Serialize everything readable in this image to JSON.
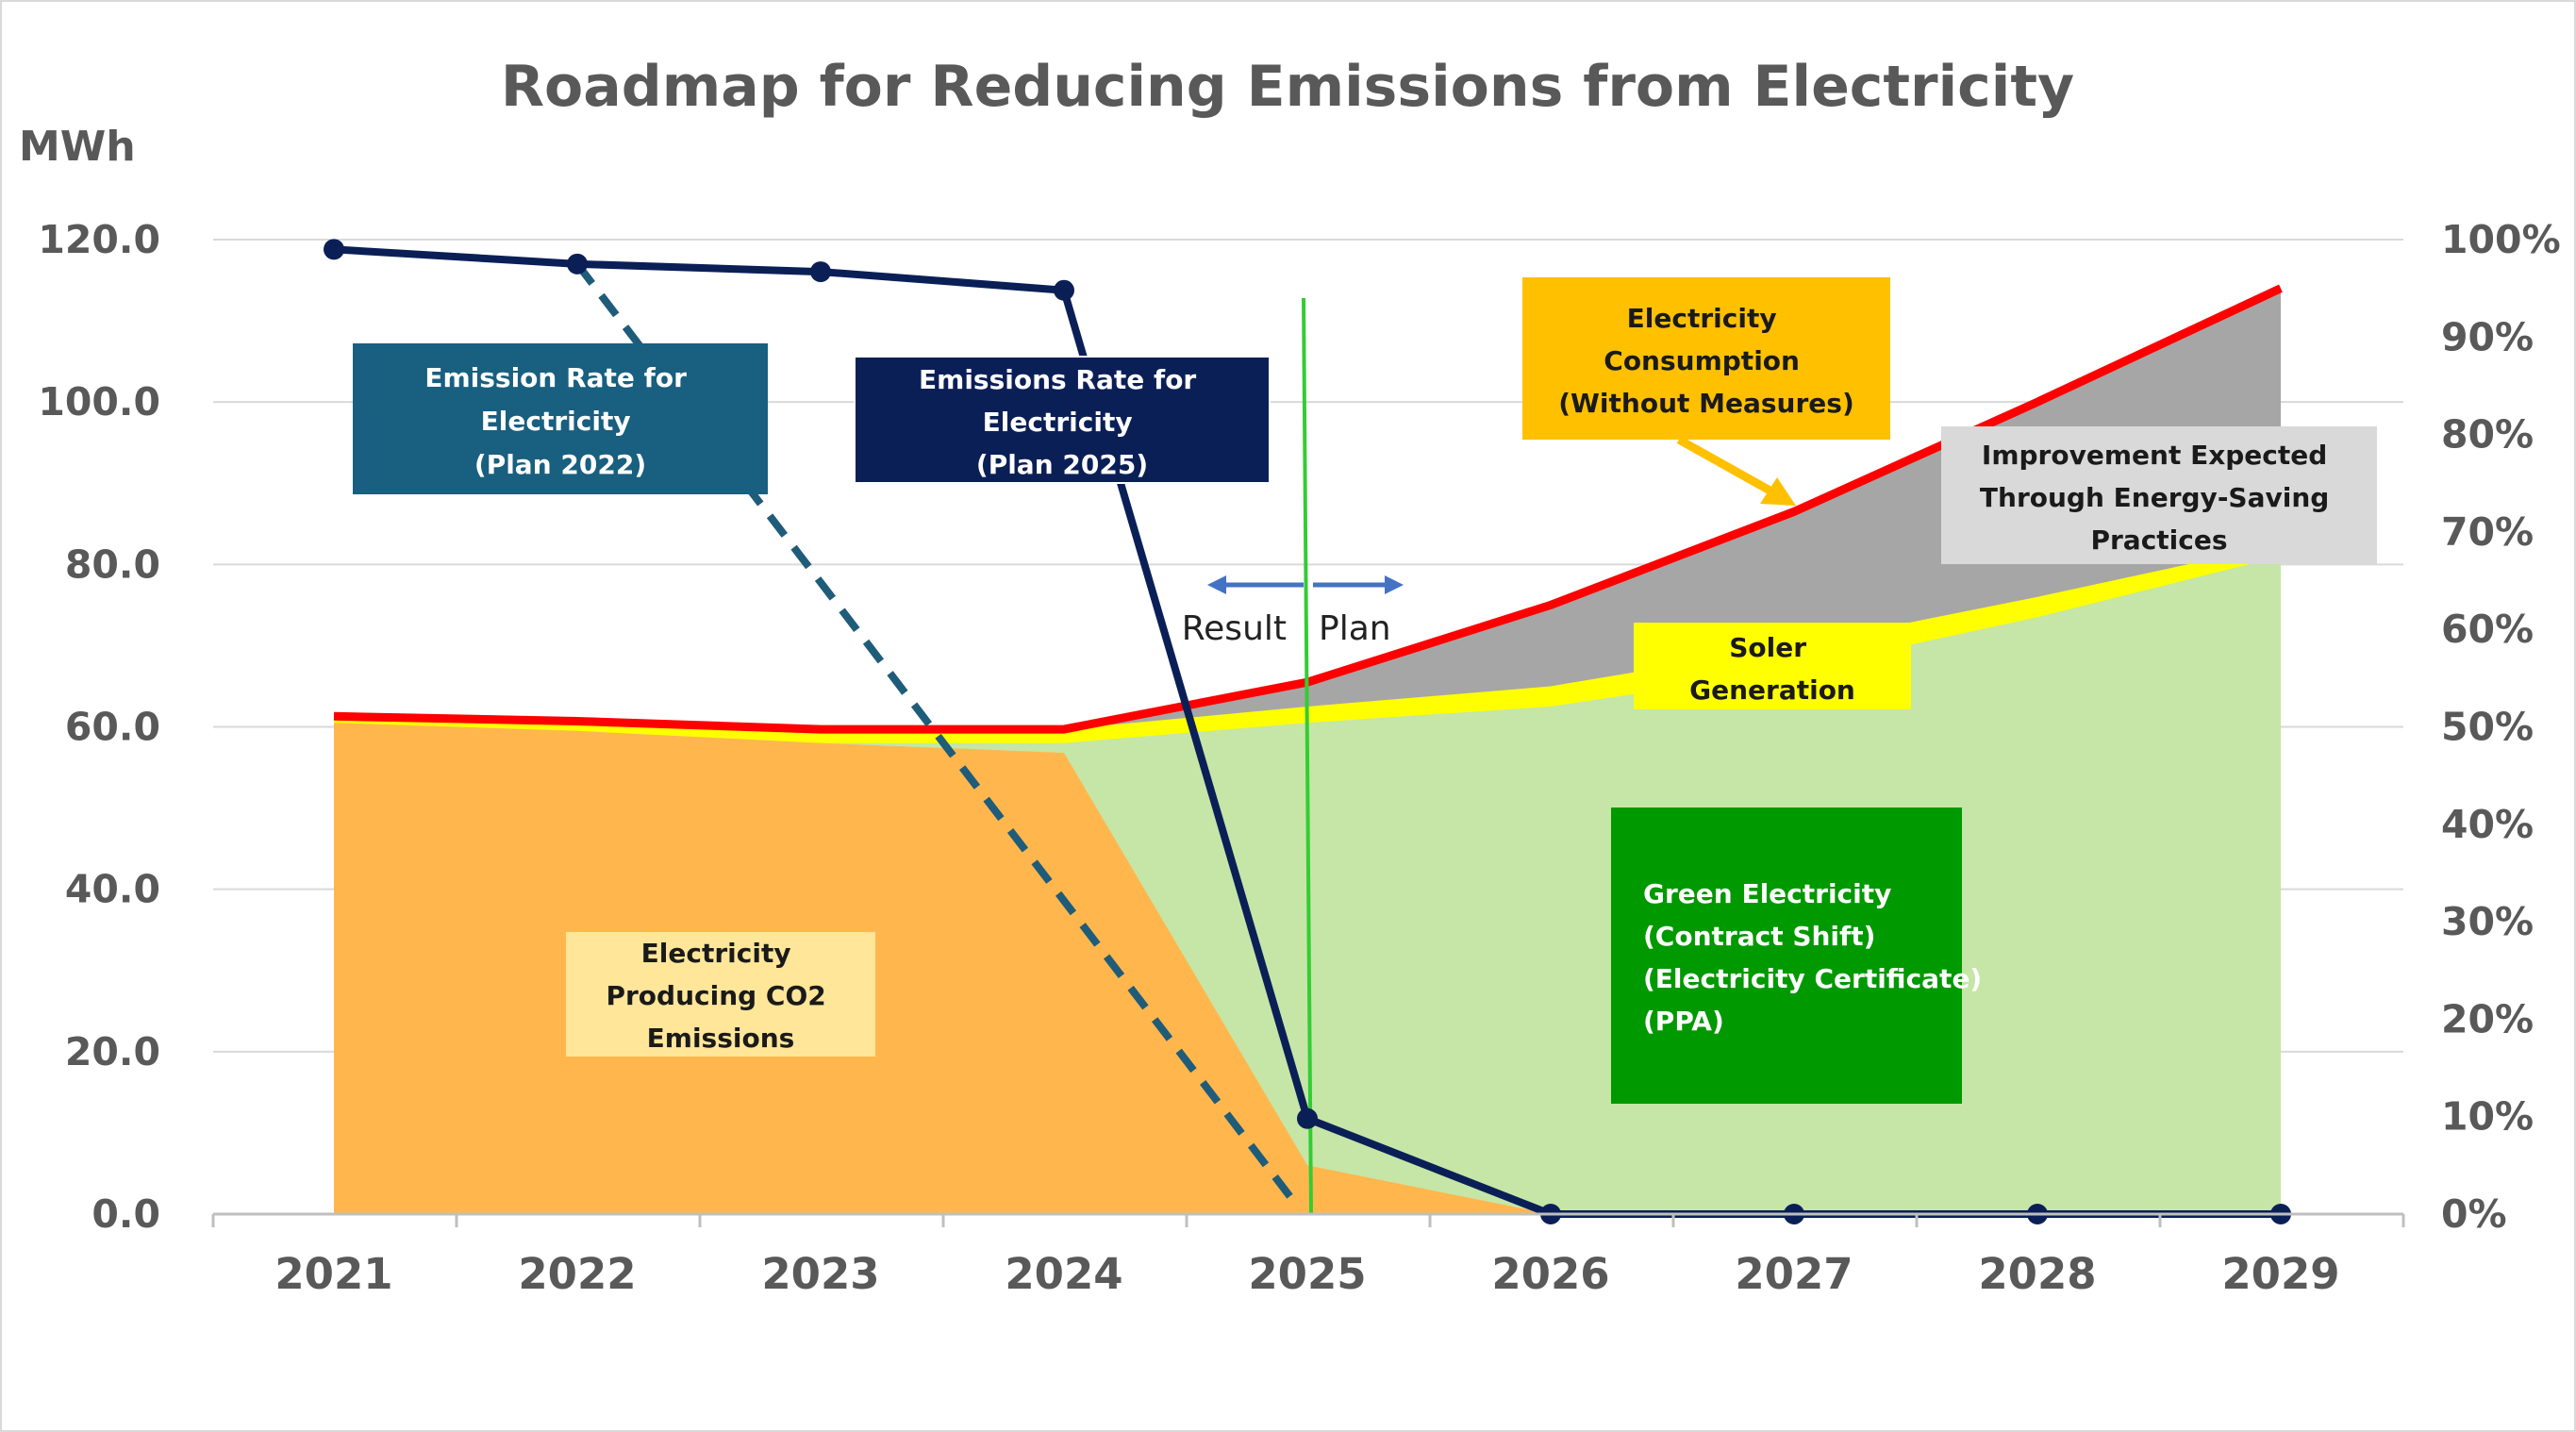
{
  "chart_data": {
    "type": "area",
    "title": "Roadmap for Reducing Emissions from Electricity",
    "ylabel": "MWh",
    "ylim": [
      0,
      120
    ],
    "y_ticks": [
      "0.0",
      "20.0",
      "40.0",
      "60.0",
      "80.0",
      "100.0",
      "120.0"
    ],
    "y2lim": [
      0,
      100
    ],
    "y2_ticks": [
      "0%",
      "10%",
      "20%",
      "30%",
      "40%",
      "50%",
      "60%",
      "70%",
      "80%",
      "90%",
      "100%"
    ],
    "categories": [
      "2021",
      "2022",
      "2023",
      "2024",
      "2025",
      "2026",
      "2027",
      "2028",
      "2029"
    ],
    "series": [
      {
        "kind": "area",
        "color": "#FFB74D",
        "values": [
          60.5,
          59.5,
          58.0,
          56.8,
          6.0,
          0,
          null,
          null,
          null
        ]
      },
      {
        "kind": "area",
        "color": "#C5E6A6",
        "values": [
          60.5,
          59.5,
          58.0,
          58.0,
          60.5,
          62.5,
          67.0,
          73.5,
          81.0
        ]
      },
      {
        "kind": "area",
        "color": "#FFFF00",
        "values": [
          61.3,
          60.7,
          59.7,
          59.7,
          62.5,
          65.0,
          70.0,
          76.0,
          82.5
        ]
      },
      {
        "kind": "area",
        "color": "#A6A6A6",
        "values": [
          61.3,
          60.7,
          59.7,
          59.7,
          65.5,
          75.0,
          86.5,
          100.0,
          114.0
        ]
      },
      {
        "kind": "line",
        "color": "#FF0000",
        "values": [
          61.3,
          60.7,
          59.7,
          59.7,
          65.5,
          75.0,
          86.5,
          100.0,
          114.0
        ]
      },
      {
        "kind": "line",
        "color": "#0B1F57",
        "axis": "right",
        "markers": true,
        "values": [
          99,
          97.5,
          96.7,
          94.8,
          9.8,
          0,
          0,
          0,
          0
        ]
      },
      {
        "kind": "dashed-line",
        "color": "#1F5C7A",
        "axis": "right",
        "points": [
          [
            1,
            97.5
          ],
          [
            4,
            1
          ]
        ]
      }
    ],
    "divider": {
      "x": 4,
      "color": "#33CC33"
    },
    "legend": "none",
    "grid": true
  },
  "annotations": {
    "plan2022": {
      "lines": [
        "Emission Rate for",
        "Electricity",
        "(Plan 2022)"
      ],
      "bg": "#185F80",
      "fg": "#FFFFFF"
    },
    "plan2025": {
      "lines": [
        "Emissions Rate for",
        "Electricity",
        "(Plan 2025)"
      ],
      "bg": "#0B1F57",
      "fg": "#FFFFFF"
    },
    "consumption": {
      "lines": [
        "Electricity",
        "Consumption",
        "(Without Measures)"
      ],
      "bg": "#FFC000",
      "fg": "#1A1A1A"
    },
    "improvement": {
      "lines": [
        "Improvement Expected",
        "Through Energy-Saving",
        "Practices"
      ],
      "bg": "#D9D9D9",
      "fg": "#1A1A1A"
    },
    "solar": {
      "lines": [
        "Soler",
        "Generation"
      ],
      "bg": "#FFFF00",
      "fg": "#1A1A1A"
    },
    "green": {
      "lines": [
        "Green Electricity",
        "(Contract Shift)",
        "(Electricity Certificate)",
        "(PPA)"
      ],
      "bg": "#009900",
      "fg": "#FFFFFF"
    },
    "co2": {
      "lines": [
        "Electricity",
        "Producing CO2",
        "Emissions"
      ],
      "bg": "#FFE699",
      "fg": "#1A1A1A"
    },
    "result": "Result",
    "plan": "Plan"
  },
  "colors": {
    "arrow": "#4472C4",
    "grid": "#D9D9D9",
    "axis": "#BFBFBF"
  }
}
